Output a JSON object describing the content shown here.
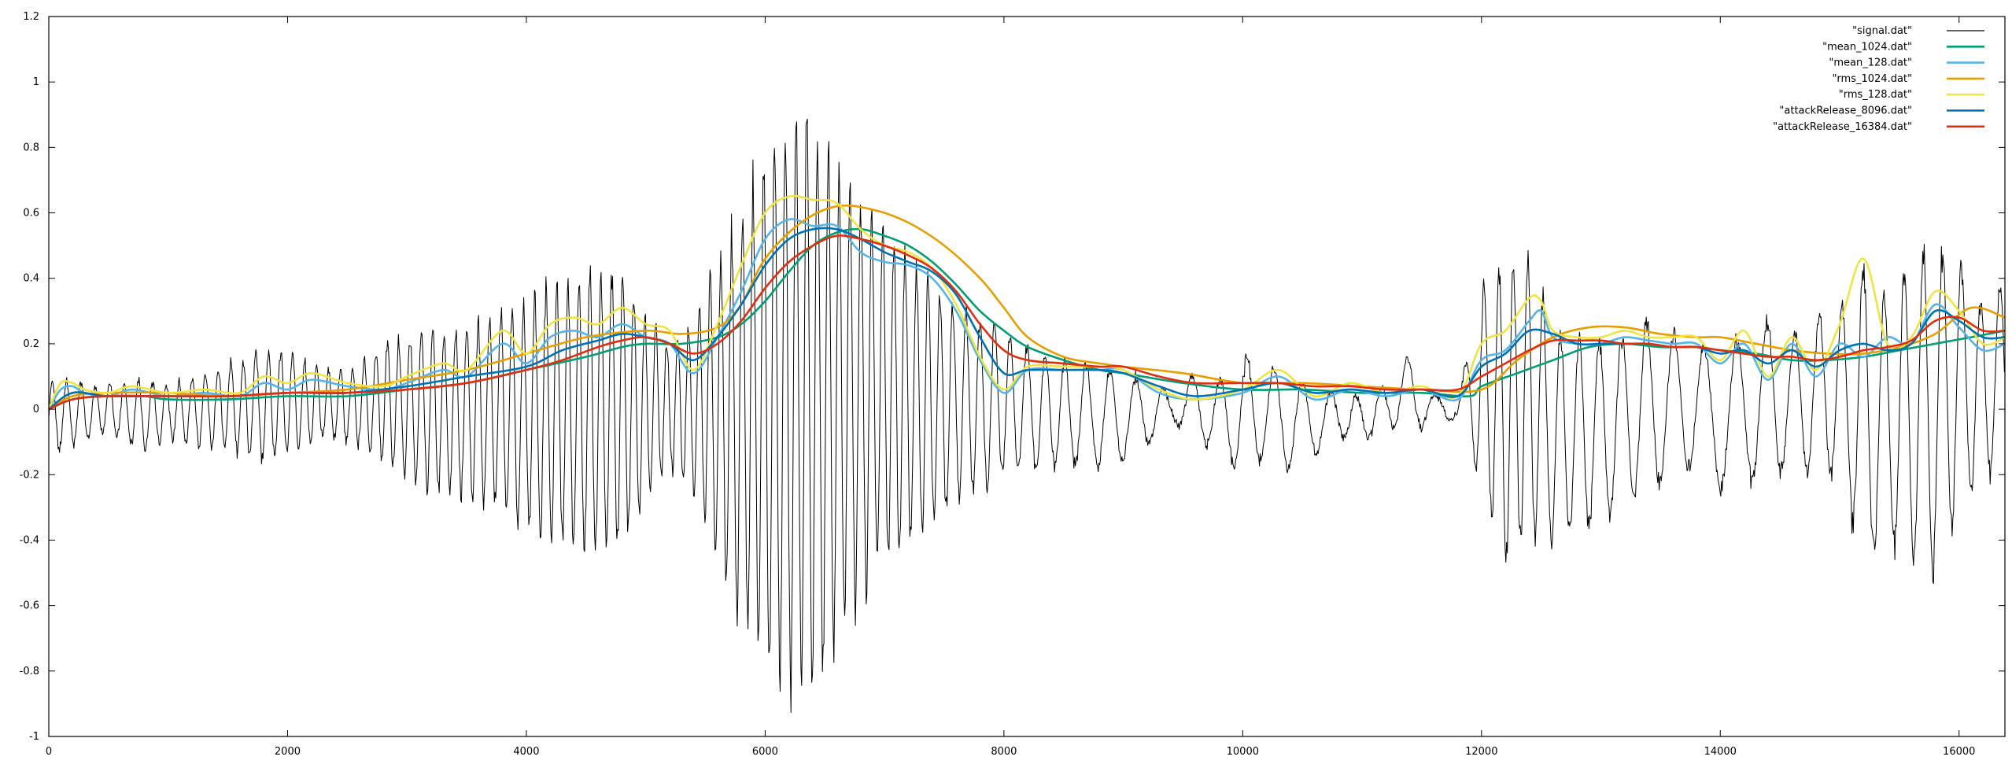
{
  "chart_data": {
    "type": "line",
    "title": "",
    "xlabel": "",
    "ylabel": "",
    "xlim": [
      0,
      16384
    ],
    "ylim": [
      -1,
      1.2
    ],
    "grid": false,
    "legend_position": "top-right",
    "x_ticks": [
      0,
      2000,
      4000,
      6000,
      8000,
      10000,
      12000,
      14000,
      16000
    ],
    "x_tick_labels": [
      "0",
      "2000",
      "4000",
      "6000",
      "8000",
      "10000",
      "12000",
      "14000",
      "16000"
    ],
    "y_ticks": [
      -1,
      -0.8,
      -0.6,
      -0.4,
      -0.2,
      0,
      0.2,
      0.4,
      0.6,
      0.8,
      1,
      1.2
    ],
    "y_tick_labels": [
      "-1",
      "-0.8",
      "-0.6",
      "-0.4",
      "-0.2",
      "0",
      "0.2",
      "0.4",
      "0.6",
      "0.8",
      "1",
      "1.2"
    ],
    "signal": {
      "name": "\"signal.dat\"",
      "color": "#000000",
      "envelope": {
        "x": [
          0,
          200,
          500,
          800,
          1000,
          1200,
          1500,
          1800,
          2000,
          2300,
          2600,
          2800,
          3000,
          3200,
          3500,
          3800,
          4000,
          4200,
          4400,
          4600,
          4800,
          5000,
          5200,
          5400,
          5600,
          5800,
          6000,
          6200,
          6400,
          6600,
          6800,
          7000,
          7200,
          7400,
          7600,
          7800,
          8000,
          8200,
          8400,
          8600,
          8800,
          9000,
          9200,
          9400,
          9600,
          9800,
          10000,
          10200,
          10400,
          10600,
          10800,
          11000,
          11200,
          11400,
          11600,
          11800,
          12000,
          12200,
          12400,
          12600,
          12800,
          13000,
          13200,
          13400,
          13600,
          13800,
          14000,
          14200,
          14400,
          14600,
          14800,
          15000,
          15200,
          15400,
          15600,
          15800,
          16000,
          16200,
          16384
        ],
        "upper": [
          0.1,
          0.1,
          0.08,
          0.1,
          0.09,
          0.11,
          0.15,
          0.2,
          0.19,
          0.13,
          0.14,
          0.22,
          0.25,
          0.26,
          0.28,
          0.34,
          0.36,
          0.42,
          0.42,
          0.48,
          0.47,
          0.32,
          0.22,
          0.3,
          0.5,
          0.67,
          0.86,
          1.0,
          0.97,
          0.83,
          0.7,
          0.6,
          0.52,
          0.42,
          0.35,
          0.3,
          0.26,
          0.22,
          0.18,
          0.16,
          0.14,
          0.12,
          0.1,
          0.05,
          0.12,
          0.1,
          0.18,
          0.15,
          0.12,
          0.07,
          0.06,
          0.05,
          0.08,
          0.18,
          0.05,
          0.03,
          0.4,
          0.5,
          0.5,
          0.28,
          0.25,
          0.25,
          0.25,
          0.3,
          0.25,
          0.22,
          0.2,
          0.25,
          0.3,
          0.25,
          0.3,
          0.34,
          0.48,
          0.36,
          0.5,
          0.55,
          0.5,
          0.35,
          0.42
        ],
        "lower": [
          -0.15,
          -0.12,
          -0.08,
          -0.14,
          -0.1,
          -0.12,
          -0.13,
          -0.18,
          -0.15,
          -0.1,
          -0.12,
          -0.18,
          -0.22,
          -0.28,
          -0.3,
          -0.33,
          -0.4,
          -0.44,
          -0.47,
          -0.5,
          -0.45,
          -0.32,
          -0.2,
          -0.28,
          -0.5,
          -0.7,
          -0.86,
          -0.98,
          -0.9,
          -0.8,
          -0.64,
          -0.52,
          -0.47,
          -0.4,
          -0.3,
          -0.28,
          -0.22,
          -0.21,
          -0.2,
          -0.19,
          -0.2,
          -0.17,
          -0.13,
          -0.04,
          -0.1,
          -0.15,
          -0.22,
          -0.16,
          -0.2,
          -0.15,
          -0.09,
          -0.12,
          -0.06,
          -0.08,
          -0.05,
          -0.03,
          -0.27,
          -0.52,
          -0.44,
          -0.44,
          -0.4,
          -0.4,
          -0.3,
          -0.3,
          -0.2,
          -0.2,
          -0.27,
          -0.26,
          -0.22,
          -0.22,
          -0.2,
          -0.25,
          -0.52,
          -0.46,
          -0.5,
          -0.56,
          -0.32,
          -0.25,
          -0.2
        ],
        "osc_period": [
          120,
          120,
          120,
          120,
          110,
          110,
          105,
          105,
          100,
          100,
          100,
          95,
          95,
          95,
          95,
          95,
          95,
          92,
          92,
          92,
          92,
          92,
          92,
          90,
          90,
          90,
          90,
          90,
          90,
          90,
          92,
          92,
          95,
          100,
          110,
          120,
          130,
          150,
          160,
          180,
          200,
          220,
          230,
          240,
          240,
          230,
          220,
          230,
          240,
          240,
          220,
          210,
          200,
          240,
          250,
          240,
          130,
          120,
          120,
          150,
          160,
          180,
          200,
          220,
          240,
          260,
          280,
          260,
          240,
          220,
          200,
          180,
          180,
          170,
          160,
          160,
          160,
          160,
          160
        ]
      }
    },
    "series": [
      {
        "name": "\"mean_1024.dat\"",
        "color": "#009E73",
        "x": [
          0,
          200,
          500,
          800,
          1000,
          1500,
          2000,
          2500,
          3000,
          3500,
          4000,
          4500,
          4800,
          5000,
          5300,
          5600,
          5800,
          6000,
          6200,
          6400,
          6600,
          6800,
          7000,
          7200,
          7400,
          7600,
          7800,
          8000,
          8200,
          8500,
          8800,
          9000,
          9500,
          10000,
          10500,
          11000,
          11500,
          11900,
          12000,
          12300,
          12600,
          12900,
          13200,
          13500,
          13800,
          14000,
          14300,
          14600,
          14900,
          15200,
          15500,
          15800,
          16100,
          16384
        ],
        "y": [
          0.0,
          0.03,
          0.04,
          0.04,
          0.03,
          0.03,
          0.04,
          0.04,
          0.06,
          0.08,
          0.12,
          0.16,
          0.19,
          0.2,
          0.2,
          0.22,
          0.26,
          0.33,
          0.42,
          0.5,
          0.54,
          0.55,
          0.53,
          0.5,
          0.45,
          0.38,
          0.3,
          0.24,
          0.19,
          0.15,
          0.12,
          0.11,
          0.08,
          0.06,
          0.06,
          0.05,
          0.05,
          0.04,
          0.07,
          0.11,
          0.15,
          0.19,
          0.2,
          0.19,
          0.19,
          0.18,
          0.17,
          0.15,
          0.15,
          0.16,
          0.18,
          0.2,
          0.22,
          0.24
        ]
      },
      {
        "name": "\"mean_128.dat\"",
        "color": "#56B4E9",
        "x": [
          0,
          100,
          200,
          300,
          500,
          700,
          1000,
          1300,
          1600,
          1800,
          2000,
          2200,
          2500,
          2800,
          3000,
          3300,
          3500,
          3800,
          4000,
          4200,
          4400,
          4600,
          4800,
          5000,
          5200,
          5400,
          5600,
          5800,
          6000,
          6200,
          6400,
          6600,
          6800,
          7000,
          7200,
          7400,
          7600,
          7800,
          8000,
          8200,
          8500,
          8800,
          9000,
          9300,
          9600,
          10000,
          10300,
          10600,
          10900,
          11200,
          11500,
          11800,
          12000,
          12200,
          12400,
          12500,
          12600,
          12800,
          13000,
          13200,
          13400,
          13600,
          13800,
          14000,
          14200,
          14400,
          14600,
          14800,
          15000,
          15200,
          15400,
          15600,
          15800,
          16000,
          16200,
          16384
        ],
        "y": [
          0.0,
          0.06,
          0.07,
          0.05,
          0.04,
          0.06,
          0.04,
          0.05,
          0.04,
          0.08,
          0.06,
          0.09,
          0.07,
          0.06,
          0.08,
          0.12,
          0.1,
          0.2,
          0.14,
          0.22,
          0.24,
          0.22,
          0.26,
          0.22,
          0.2,
          0.11,
          0.22,
          0.36,
          0.52,
          0.58,
          0.56,
          0.56,
          0.48,
          0.45,
          0.44,
          0.4,
          0.3,
          0.15,
          0.05,
          0.12,
          0.12,
          0.12,
          0.12,
          0.05,
          0.03,
          0.05,
          0.1,
          0.03,
          0.06,
          0.04,
          0.06,
          0.03,
          0.15,
          0.18,
          0.27,
          0.3,
          0.22,
          0.2,
          0.2,
          0.22,
          0.21,
          0.2,
          0.2,
          0.14,
          0.2,
          0.09,
          0.2,
          0.1,
          0.2,
          0.16,
          0.22,
          0.2,
          0.32,
          0.25,
          0.18,
          0.2
        ]
      },
      {
        "name": "\"rms_1024.dat\"",
        "color": "#E69F00",
        "x": [
          0,
          200,
          500,
          1000,
          1500,
          2000,
          2500,
          3000,
          3500,
          4000,
          4500,
          5000,
          5300,
          5600,
          5800,
          6000,
          6300,
          6600,
          6900,
          7200,
          7500,
          7800,
          8000,
          8200,
          8500,
          8800,
          9000,
          9500,
          10000,
          10500,
          11000,
          11500,
          12000,
          12300,
          12600,
          12900,
          13200,
          13500,
          13800,
          14000,
          14300,
          14600,
          14900,
          15200,
          15500,
          15800,
          16100,
          16384
        ],
        "y": [
          0.0,
          0.04,
          0.05,
          0.05,
          0.04,
          0.05,
          0.06,
          0.09,
          0.12,
          0.17,
          0.22,
          0.24,
          0.23,
          0.25,
          0.32,
          0.46,
          0.57,
          0.62,
          0.61,
          0.57,
          0.5,
          0.4,
          0.31,
          0.22,
          0.16,
          0.14,
          0.13,
          0.11,
          0.08,
          0.08,
          0.07,
          0.06,
          0.06,
          0.15,
          0.22,
          0.25,
          0.25,
          0.23,
          0.22,
          0.22,
          0.2,
          0.18,
          0.17,
          0.17,
          0.19,
          0.23,
          0.31,
          0.28
        ]
      },
      {
        "name": "\"rms_128.dat\"",
        "color": "#F0E442",
        "x": [
          0,
          100,
          200,
          300,
          500,
          700,
          1000,
          1300,
          1600,
          1800,
          2000,
          2200,
          2500,
          2800,
          3000,
          3300,
          3500,
          3800,
          4000,
          4200,
          4400,
          4600,
          4800,
          5000,
          5200,
          5400,
          5600,
          5800,
          6000,
          6200,
          6400,
          6600,
          6800,
          7000,
          7200,
          7400,
          7600,
          7800,
          8000,
          8200,
          8500,
          8800,
          9000,
          9300,
          9600,
          10000,
          10300,
          10600,
          10900,
          11200,
          11500,
          11800,
          12000,
          12200,
          12400,
          12500,
          12600,
          12800,
          13000,
          13200,
          13400,
          13600,
          13800,
          14000,
          14200,
          14400,
          14600,
          14800,
          15000,
          15200,
          15400,
          15600,
          15800,
          16000,
          16200,
          16384
        ],
        "y": [
          0.0,
          0.08,
          0.08,
          0.06,
          0.05,
          0.07,
          0.05,
          0.06,
          0.05,
          0.1,
          0.08,
          0.11,
          0.08,
          0.07,
          0.1,
          0.14,
          0.12,
          0.24,
          0.17,
          0.26,
          0.28,
          0.26,
          0.31,
          0.26,
          0.24,
          0.12,
          0.26,
          0.44,
          0.6,
          0.65,
          0.64,
          0.63,
          0.55,
          0.5,
          0.48,
          0.43,
          0.32,
          0.16,
          0.06,
          0.13,
          0.13,
          0.13,
          0.12,
          0.06,
          0.03,
          0.06,
          0.12,
          0.04,
          0.08,
          0.05,
          0.07,
          0.04,
          0.2,
          0.24,
          0.34,
          0.33,
          0.24,
          0.22,
          0.22,
          0.24,
          0.22,
          0.22,
          0.22,
          0.15,
          0.24,
          0.1,
          0.22,
          0.12,
          0.26,
          0.46,
          0.2,
          0.22,
          0.36,
          0.3,
          0.2,
          0.22
        ]
      },
      {
        "name": "\"attackRelease_8096.dat\"",
        "color": "#0072B2",
        "x": [
          0,
          200,
          500,
          1000,
          1500,
          2000,
          2500,
          3000,
          3500,
          4000,
          4300,
          4600,
          4800,
          5000,
          5200,
          5400,
          5600,
          5800,
          6000,
          6200,
          6400,
          6600,
          6800,
          7000,
          7200,
          7400,
          7600,
          7800,
          8000,
          8200,
          8500,
          8800,
          9000,
          9300,
          9600,
          10000,
          10300,
          10600,
          10900,
          11200,
          11500,
          11800,
          12000,
          12200,
          12400,
          12600,
          12800,
          13000,
          13200,
          13400,
          13600,
          13800,
          14000,
          14200,
          14400,
          14600,
          14800,
          15000,
          15200,
          15400,
          15600,
          15800,
          16000,
          16200,
          16384
        ],
        "y": [
          0.0,
          0.05,
          0.04,
          0.04,
          0.04,
          0.05,
          0.05,
          0.07,
          0.1,
          0.13,
          0.18,
          0.21,
          0.23,
          0.22,
          0.2,
          0.15,
          0.22,
          0.32,
          0.44,
          0.52,
          0.55,
          0.55,
          0.52,
          0.48,
          0.45,
          0.42,
          0.35,
          0.22,
          0.11,
          0.12,
          0.12,
          0.12,
          0.11,
          0.07,
          0.04,
          0.06,
          0.08,
          0.05,
          0.06,
          0.05,
          0.06,
          0.04,
          0.13,
          0.17,
          0.24,
          0.23,
          0.2,
          0.2,
          0.2,
          0.2,
          0.19,
          0.19,
          0.17,
          0.18,
          0.14,
          0.18,
          0.13,
          0.18,
          0.2,
          0.18,
          0.2,
          0.3,
          0.27,
          0.22,
          0.22
        ]
      },
      {
        "name": "\"attackRelease_16384.dat\"",
        "color": "#E02F10",
        "x": [
          0,
          200,
          500,
          1000,
          1500,
          2000,
          2500,
          3000,
          3500,
          4000,
          4300,
          4600,
          4800,
          5000,
          5200,
          5400,
          5600,
          5800,
          6000,
          6200,
          6400,
          6600,
          6800,
          7000,
          7200,
          7400,
          7600,
          7800,
          8000,
          8200,
          8500,
          8800,
          9000,
          9300,
          9600,
          10000,
          10300,
          10600,
          10900,
          11200,
          11500,
          11800,
          12000,
          12200,
          12400,
          12600,
          12800,
          13000,
          13200,
          13400,
          13600,
          13800,
          14000,
          14200,
          14400,
          14600,
          14800,
          15000,
          15200,
          15400,
          15600,
          15800,
          16000,
          16200,
          16384
        ],
        "y": [
          0.0,
          0.03,
          0.04,
          0.04,
          0.04,
          0.05,
          0.05,
          0.06,
          0.08,
          0.12,
          0.15,
          0.19,
          0.21,
          0.22,
          0.2,
          0.17,
          0.2,
          0.27,
          0.37,
          0.45,
          0.5,
          0.53,
          0.52,
          0.5,
          0.47,
          0.43,
          0.36,
          0.26,
          0.18,
          0.15,
          0.14,
          0.13,
          0.13,
          0.1,
          0.08,
          0.08,
          0.08,
          0.07,
          0.07,
          0.06,
          0.06,
          0.06,
          0.1,
          0.14,
          0.18,
          0.21,
          0.21,
          0.21,
          0.2,
          0.2,
          0.19,
          0.19,
          0.18,
          0.17,
          0.16,
          0.16,
          0.15,
          0.16,
          0.18,
          0.19,
          0.21,
          0.27,
          0.28,
          0.24,
          0.24
        ]
      }
    ]
  }
}
